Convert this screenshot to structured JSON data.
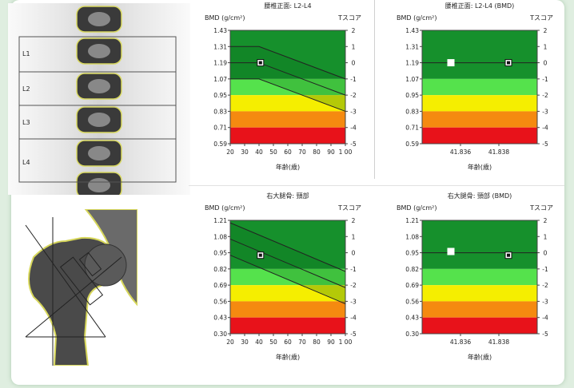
{
  "chart_data": [
    {
      "id": "spine_age",
      "type": "line",
      "title": "腰椎正面: L2-L4",
      "ylabel": "BMD (g/cm²)",
      "y2label": "Tスコア",
      "xlabel": "年齢(歳)",
      "x_ticks": [
        "20",
        "30",
        "40",
        "50",
        "60",
        "70",
        "80",
        "90",
        "1 00"
      ],
      "x_range": [
        20,
        100
      ],
      "y_ticks": [
        "1.43",
        "1.31",
        "1.19",
        "1.07",
        "0.95",
        "0.83",
        "0.71",
        "0.59"
      ],
      "y_range": [
        0.59,
        1.43
      ],
      "t_ticks": [
        "2",
        "1",
        "0",
        "-1",
        "-2",
        "-3",
        "-4",
        "-5"
      ],
      "bands": [
        {
          "from": 1.07,
          "to": 1.43,
          "color": "#16902c"
        },
        {
          "from": 0.95,
          "to": 1.07,
          "color": "#55e24c"
        },
        {
          "from": 0.83,
          "to": 0.95,
          "color": "#f5ee00"
        },
        {
          "from": 0.71,
          "to": 0.83,
          "color": "#f58a10"
        },
        {
          "from": 0.59,
          "to": 0.71,
          "color": "#e8121a"
        }
      ],
      "reference": {
        "age_flat_until": 40,
        "mean_start": 1.19,
        "mean_end": 0.95,
        "sd": 0.12
      },
      "points": [
        {
          "x": 41,
          "y": 1.19,
          "style": "black"
        }
      ]
    },
    {
      "id": "spine_bmd",
      "type": "scatter",
      "title": "腰椎正面: L2-L4 (BMD)",
      "ylabel": "BMD (g/cm²)",
      "y2label": "Tスコア",
      "xlabel": "年齢(歳)",
      "x_ticks": [
        "41.836",
        "41.838"
      ],
      "y_ticks": [
        "1.43",
        "1.31",
        "1.19",
        "1.07",
        "0.95",
        "0.83",
        "0.71",
        "0.59"
      ],
      "y_range": [
        0.59,
        1.43
      ],
      "t_ticks": [
        "2",
        "1",
        "0",
        "-1",
        "-2",
        "-3",
        "-4",
        "-5"
      ],
      "bands": [
        {
          "from": 1.07,
          "to": 1.43,
          "color": "#16902c"
        },
        {
          "from": 0.95,
          "to": 1.07,
          "color": "#55e24c"
        },
        {
          "from": 0.83,
          "to": 0.95,
          "color": "#f5ee00"
        },
        {
          "from": 0.71,
          "to": 0.83,
          "color": "#f58a10"
        },
        {
          "from": 0.59,
          "to": 0.71,
          "color": "#e8121a"
        }
      ],
      "hline": 1.19,
      "points": [
        {
          "x": 41.8355,
          "y": 1.19,
          "style": "white"
        },
        {
          "x": 41.8385,
          "y": 1.19,
          "style": "black"
        }
      ]
    },
    {
      "id": "hip_age",
      "type": "line",
      "title": "右大腿骨: 頸部",
      "ylabel": "BMD (g/cm²)",
      "y2label": "Tスコア",
      "xlabel": "年齢(歳)",
      "x_ticks": [
        "20",
        "30",
        "40",
        "50",
        "60",
        "70",
        "80",
        "90",
        "1 00"
      ],
      "x_range": [
        20,
        100
      ],
      "y_ticks": [
        "1.21",
        "1.08",
        "0.95",
        "0.82",
        "0.69",
        "0.56",
        "0.43",
        "0.30"
      ],
      "y_range": [
        0.3,
        1.21
      ],
      "t_ticks": [
        "2",
        "1",
        "0",
        "-1",
        "-2",
        "-3",
        "-4",
        "-5"
      ],
      "bands": [
        {
          "from": 0.82,
          "to": 1.21,
          "color": "#16902c"
        },
        {
          "from": 0.69,
          "to": 0.82,
          "color": "#55e24c"
        },
        {
          "from": 0.56,
          "to": 0.69,
          "color": "#f5ee00"
        },
        {
          "from": 0.43,
          "to": 0.56,
          "color": "#f58a10"
        },
        {
          "from": 0.3,
          "to": 0.43,
          "color": "#e8121a"
        }
      ],
      "reference": {
        "age_flat_until": 20,
        "mean_start": 1.06,
        "mean_end": 0.67,
        "sd": 0.13
      },
      "points": [
        {
          "x": 41,
          "y": 0.93,
          "style": "black"
        }
      ]
    },
    {
      "id": "hip_bmd",
      "type": "scatter",
      "title": "右大腿骨: 頸部 (BMD)",
      "ylabel": "BMD (g/cm²)",
      "y2label": "Tスコア",
      "xlabel": "年齢(歳)",
      "x_ticks": [
        "41.836",
        "41.838"
      ],
      "y_ticks": [
        "1.21",
        "1.08",
        "0.95",
        "0.82",
        "0.69",
        "0.56",
        "0.43",
        "0.30"
      ],
      "y_range": [
        0.3,
        1.21
      ],
      "t_ticks": [
        "2",
        "1",
        "0",
        "-1",
        "-2",
        "-3",
        "-4",
        "-5"
      ],
      "bands": [
        {
          "from": 0.82,
          "to": 1.21,
          "color": "#16902c"
        },
        {
          "from": 0.69,
          "to": 0.82,
          "color": "#55e24c"
        },
        {
          "from": 0.56,
          "to": 0.69,
          "color": "#f5ee00"
        },
        {
          "from": 0.43,
          "to": 0.56,
          "color": "#f58a10"
        },
        {
          "from": 0.3,
          "to": 0.43,
          "color": "#e8121a"
        }
      ],
      "hline": 0.95,
      "points": [
        {
          "x": 41.8355,
          "y": 0.96,
          "style": "white"
        },
        {
          "x": 41.8385,
          "y": 0.93,
          "style": "black"
        }
      ]
    }
  ],
  "scans": {
    "spine": {
      "labels": [
        "L1",
        "L2",
        "L3",
        "L4"
      ]
    }
  }
}
